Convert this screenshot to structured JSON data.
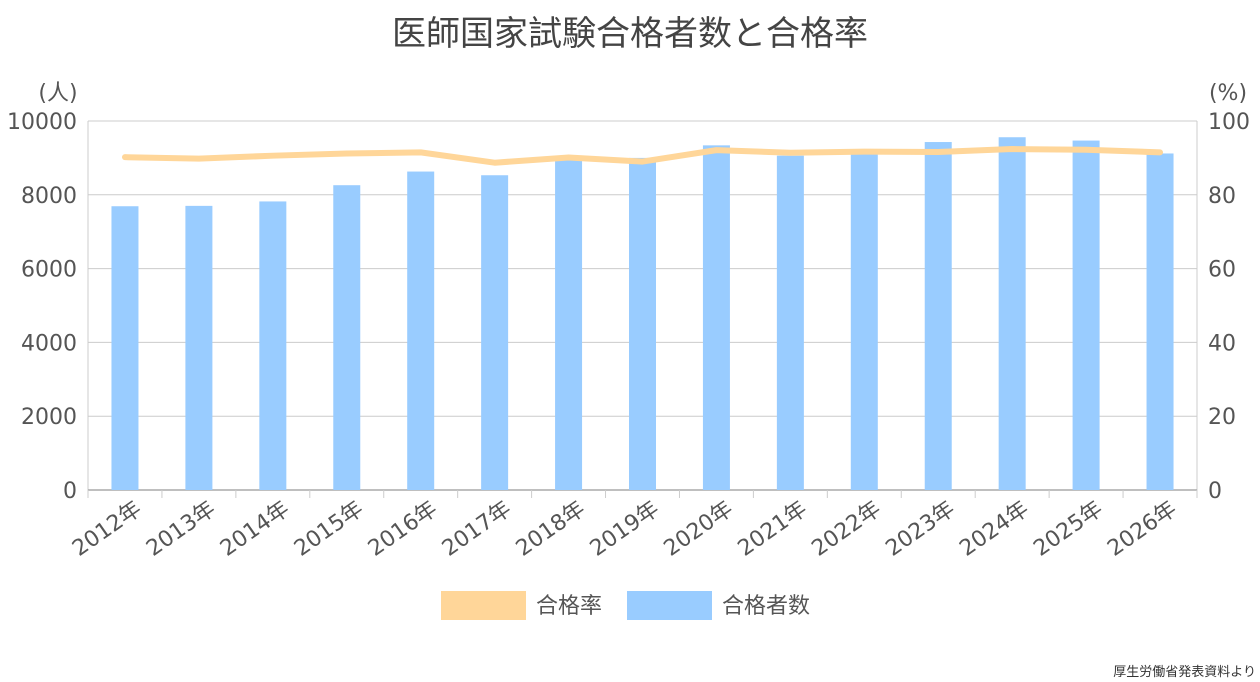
{
  "chart_data": {
    "type": "bar",
    "title": "医師国家試験合格者数と合格率",
    "categories": [
      "2012年",
      "2013年",
      "2014年",
      "2015年",
      "2016年",
      "2017年",
      "2018年",
      "2019年",
      "2020年",
      "2021年",
      "2022年",
      "2023年",
      "2024年",
      "2025年",
      "2026年"
    ],
    "y_left": {
      "label": "(人)",
      "ylim": [
        0,
        10000
      ],
      "ticks": [
        0,
        2000,
        4000,
        6000,
        8000,
        10000
      ]
    },
    "y_right": {
      "label": "(%)",
      "ylim": [
        0,
        100
      ],
      "ticks": [
        0,
        20,
        40,
        60,
        80,
        100
      ]
    },
    "series": [
      {
        "name": "合格者数",
        "type": "bar",
        "axis": "left",
        "color": "#99ccff",
        "values": [
          7690,
          7700,
          7820,
          8260,
          8630,
          8530,
          8990,
          9000,
          9340,
          9060,
          9220,
          9430,
          9560,
          9470,
          9120
        ]
      },
      {
        "name": "合格率",
        "type": "line",
        "axis": "right",
        "color": "#ffd699",
        "values": [
          90.2,
          89.8,
          90.6,
          91.2,
          91.5,
          88.7,
          90.1,
          89.0,
          92.1,
          91.4,
          91.7,
          91.6,
          92.4,
          92.2,
          91.5
        ]
      }
    ],
    "grid": true,
    "legend_position": "bottom",
    "legend": [
      "合格率",
      "合格者数"
    ]
  },
  "source_note": "厚生労働省発表資料より"
}
